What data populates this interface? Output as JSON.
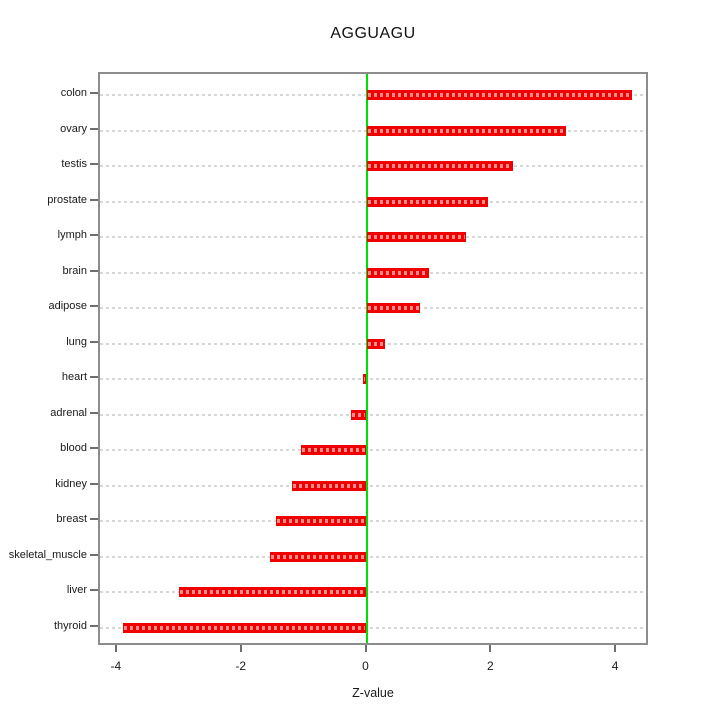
{
  "title": "AGGUAGU",
  "x_axis_label": "Z-value",
  "chart_data": {
    "type": "bar",
    "orientation": "horizontal",
    "title": "AGGUAGU",
    "xlabel": "Z-value",
    "ylabel": "",
    "categories": [
      "colon",
      "ovary",
      "testis",
      "prostate",
      "lymph",
      "brain",
      "adipose",
      "lung",
      "heart",
      "adrenal",
      "blood",
      "kidney",
      "breast",
      "skeletal_muscle",
      "liver",
      "thyroid"
    ],
    "values": [
      4.25,
      3.2,
      2.35,
      1.95,
      1.6,
      1.0,
      0.85,
      0.3,
      -0.05,
      -0.25,
      -1.05,
      -1.2,
      -1.45,
      -1.55,
      -3.0,
      -3.9
    ],
    "x_ticks": [
      -4,
      -2,
      0,
      2,
      4
    ],
    "xlim": [
      -4.3,
      4.55
    ],
    "grid": true,
    "legend": false,
    "bar_color": "#f10000",
    "bar_dash_overlay_color": "rgba(255,255,255,0.55)",
    "zero_line_color": "#00e000",
    "grid_color": "#d8d8d8",
    "box_color": "#8d8d8d"
  }
}
